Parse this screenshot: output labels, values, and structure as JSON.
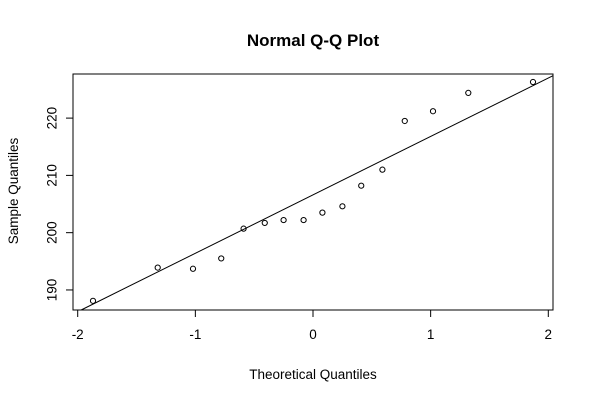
{
  "chart_data": {
    "type": "scatter",
    "title": "Normal Q-Q Plot",
    "xlabel": "Theoretical Quantiles",
    "ylabel": "Sample Quantiles",
    "xlim": [
      -2.04,
      2.04
    ],
    "ylim": [
      186.5,
      227.7
    ],
    "x_ticks": [
      -2,
      -1,
      0,
      1,
      2
    ],
    "x_tick_labels": [
      "-2",
      "-1",
      "0",
      "1",
      "2"
    ],
    "y_ticks": [
      190,
      200,
      210,
      220
    ],
    "y_tick_labels": [
      "190",
      "200",
      "210",
      "220"
    ],
    "grid": false,
    "legend": "none",
    "points": {
      "x": [
        -1.87,
        -1.32,
        -1.02,
        -0.78,
        -0.59,
        -0.41,
        -0.25,
        -0.08,
        0.08,
        0.25,
        0.41,
        0.59,
        0.78,
        1.02,
        1.32,
        1.87
      ],
      "y": [
        188.1,
        193.9,
        193.7,
        195.5,
        200.7,
        201.7,
        202.2,
        202.2,
        203.5,
        204.6,
        208.2,
        211.0,
        219.5,
        221.2,
        224.4,
        226.3
      ]
    },
    "reference_line": {
      "intercept": 206.6,
      "slope": 10.2
    },
    "colors": {
      "points": "#000000",
      "line": "#000000",
      "axes": "#000000"
    }
  }
}
